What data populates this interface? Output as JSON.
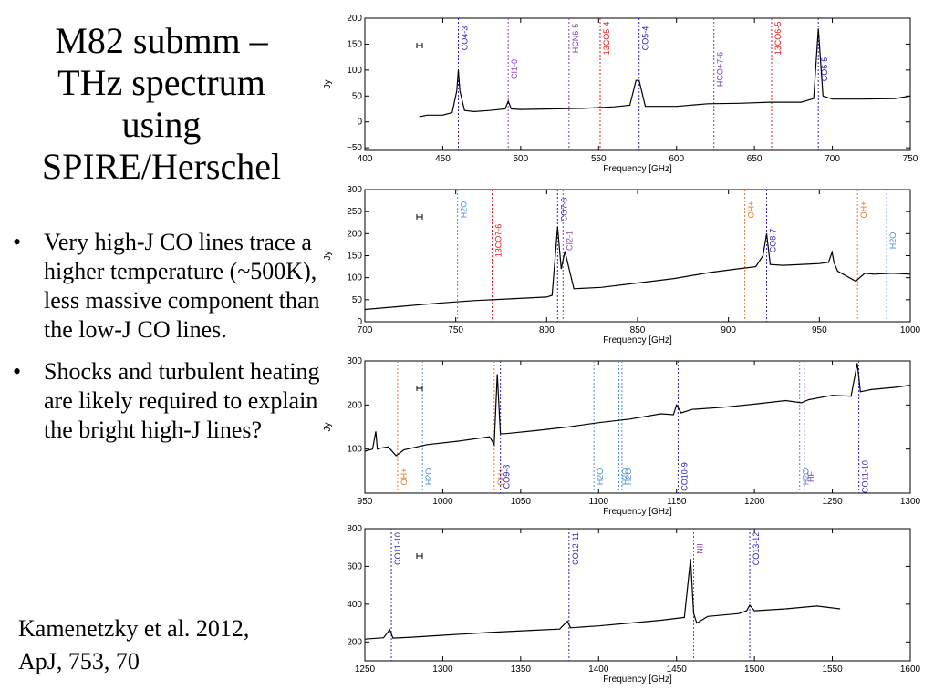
{
  "slide": {
    "title_lines": [
      "M82 submm –",
      "THz spectrum",
      "using",
      "SPIRE/Herschel"
    ],
    "bullets": [
      "Very high-J CO lines trace a higher temperature (~500K), less massive component than the low-J CO lines.",
      "Shocks and turbulent heating are likely required to explain the bright high-J lines?"
    ],
    "citation_lines": [
      "Kamenetzky et al. 2012,",
      "ApJ, 753, 70"
    ]
  },
  "colors": {
    "co": "#2a22b8",
    "ci": "#8b3fb8",
    "oh": "#e07a30",
    "h2o": "#4f8fd4",
    "hco": "#7a3fa8",
    "red": "#e01a1a",
    "hf": "#8b3fb8",
    "spectrum": "#000000"
  },
  "chart_data": [
    {
      "type": "line",
      "xlabel": "Frequency [GHz]",
      "ylabel": "Jy",
      "xlim": [
        400,
        750
      ],
      "ylim": [
        -55,
        200
      ],
      "xticks": [
        400,
        450,
        500,
        550,
        600,
        650,
        700,
        750
      ],
      "yticks": [
        -50,
        0,
        50,
        100,
        150,
        200
      ],
      "xtick_labels": [
        "400",
        "450",
        "500",
        "550",
        "600",
        "650",
        "700",
        "750"
      ],
      "ytick_labels": [
        "−50",
        "0",
        "50",
        "100",
        "150",
        "200"
      ],
      "series": [
        {
          "x": [
            435,
            440,
            450,
            456,
            459,
            460,
            461,
            464,
            470,
            480,
            490,
            492,
            494,
            500,
            520,
            540,
            560,
            570,
            574,
            576,
            580,
            600,
            620,
            640,
            660,
            680,
            688,
            691,
            694,
            700,
            720,
            740,
            750
          ],
          "y": [
            10,
            13,
            13,
            18,
            60,
            100,
            60,
            22,
            20,
            22,
            25,
            40,
            25,
            24,
            25,
            26,
            29,
            32,
            80,
            80,
            30,
            30,
            35,
            36,
            38,
            38,
            45,
            180,
            50,
            44,
            44,
            45,
            50
          ]
        }
      ],
      "lines": [
        {
          "x": 460,
          "label": "CO4-3",
          "color": "co",
          "pos": "top"
        },
        {
          "x": 492,
          "label": "CI1-0",
          "color": "ci",
          "pos": "mid"
        },
        {
          "x": 531,
          "label": "HCN6-5",
          "color": "hco",
          "pos": "top"
        },
        {
          "x": 551,
          "label": "13CO5-4",
          "color": "red",
          "pos": "top"
        },
        {
          "x": 576,
          "label": "CO5-4",
          "color": "co",
          "pos": "top"
        },
        {
          "x": 624,
          "label": "HCO+7-6",
          "color": "hco",
          "pos": "mid"
        },
        {
          "x": 661,
          "label": "13CO6-5",
          "color": "red",
          "pos": "top"
        },
        {
          "x": 691,
          "label": "CO6-5",
          "color": "co",
          "pos": "mid"
        }
      ]
    },
    {
      "type": "line",
      "xlabel": "Frequency [GHz]",
      "ylabel": "Jy",
      "xlim": [
        700,
        1000
      ],
      "ylim": [
        0,
        300
      ],
      "xticks": [
        700,
        750,
        800,
        850,
        900,
        950,
        1000
      ],
      "yticks": [
        0,
        50,
        100,
        150,
        200,
        250,
        300
      ],
      "xtick_labels": [
        "700",
        "750",
        "800",
        "850",
        "900",
        "950",
        "1000"
      ],
      "ytick_labels": [
        "0",
        "50",
        "100",
        "150",
        "200",
        "250",
        "300"
      ],
      "series": [
        {
          "x": [
            700,
            720,
            740,
            760,
            780,
            800,
            803,
            806,
            808,
            810,
            815,
            830,
            850,
            870,
            890,
            905,
            915,
            919,
            921,
            923,
            930,
            950,
            955,
            957,
            958,
            960,
            970,
            975,
            980,
            990,
            1000
          ],
          "y": [
            28,
            35,
            42,
            48,
            52,
            56,
            60,
            215,
            120,
            160,
            75,
            78,
            88,
            98,
            112,
            120,
            125,
            150,
            200,
            130,
            128,
            132,
            135,
            158,
            135,
            115,
            92,
            110,
            108,
            110,
            108
          ]
        }
      ],
      "lines": [
        {
          "x": 751,
          "label": "H2O",
          "color": "h2o",
          "pos": "top"
        },
        {
          "x": 770,
          "label": "13CO7-6",
          "color": "red",
          "pos": "mid"
        },
        {
          "x": 806,
          "label": "CO7-6",
          "color": "co",
          "pos": "top"
        },
        {
          "x": 809,
          "label": "CI2-1",
          "color": "ci",
          "pos": "mid"
        },
        {
          "x": 909,
          "label": "OH+",
          "color": "oh",
          "pos": "top"
        },
        {
          "x": 921,
          "label": "CO8-7",
          "color": "co",
          "pos": "mid"
        },
        {
          "x": 971,
          "label": "OH+",
          "color": "oh",
          "pos": "top"
        },
        {
          "x": 987,
          "label": "H2O",
          "color": "h2o",
          "pos": "mid"
        }
      ]
    },
    {
      "type": "line",
      "xlabel": "Frequency [GHz]",
      "ylabel": "Jy",
      "xlim": [
        950,
        1300
      ],
      "ylim": [
        0,
        300
      ],
      "xticks": [
        950,
        1000,
        1050,
        1100,
        1150,
        1200,
        1250,
        1300
      ],
      "yticks": [
        100,
        200,
        300
      ],
      "xtick_labels": [
        "950",
        "1000",
        "1050",
        "1100",
        "1150",
        "1200",
        "1250",
        "1300"
      ],
      "ytick_labels": [
        "100",
        "200",
        "300"
      ],
      "series": [
        {
          "x": [
            950,
            955,
            957,
            958,
            960,
            965,
            970,
            972,
            975,
            990,
            1010,
            1030,
            1033,
            1035,
            1037,
            1040,
            1060,
            1080,
            1100,
            1120,
            1140,
            1148,
            1150,
            1153,
            1160,
            1180,
            1200,
            1220,
            1230,
            1235,
            1250,
            1262,
            1266,
            1268,
            1275,
            1290,
            1300
          ],
          "y": [
            95,
            100,
            140,
            100,
            102,
            105,
            85,
            90,
            98,
            110,
            118,
            128,
            110,
            270,
            135,
            135,
            142,
            150,
            160,
            168,
            180,
            178,
            200,
            182,
            190,
            195,
            202,
            210,
            205,
            212,
            222,
            220,
            295,
            230,
            235,
            240,
            245
          ]
        }
      ],
      "lines": [
        {
          "x": 971,
          "label": "OH+",
          "color": "oh",
          "pos": "bottom"
        },
        {
          "x": 987,
          "label": "H2O",
          "color": "h2o",
          "pos": "bottom"
        },
        {
          "x": 1033,
          "label": "OH+",
          "color": "oh",
          "pos": "bottom"
        },
        {
          "x": 1037,
          "label": "CO9-8",
          "color": "co",
          "pos": "bottom"
        },
        {
          "x": 1097,
          "label": "H2O",
          "color": "h2o",
          "pos": "bottom"
        },
        {
          "x": 1113,
          "label": "H2O",
          "color": "h2o",
          "pos": "bottom"
        },
        {
          "x": 1115,
          "label": "H2O",
          "color": "h2o",
          "pos": "bottom"
        },
        {
          "x": 1151,
          "label": "CO10-9",
          "color": "co",
          "pos": "bottom"
        },
        {
          "x": 1229,
          "label": "H2O",
          "color": "h2o",
          "pos": "bottom"
        },
        {
          "x": 1232,
          "label": "HF",
          "color": "hf",
          "pos": "bottom"
        },
        {
          "x": 1267,
          "label": "CO11-10",
          "color": "co",
          "pos": "bottom"
        }
      ]
    },
    {
      "type": "line",
      "xlabel": "Frequency [GHz]",
      "ylabel": "",
      "xlim": [
        1250,
        1600
      ],
      "ylim": [
        100,
        800
      ],
      "xticks": [
        1250,
        1300,
        1350,
        1400,
        1450,
        1500,
        1550,
        1600
      ],
      "yticks": [
        200,
        400,
        600,
        800
      ],
      "xtick_labels": [
        "1250",
        "1300",
        "1350",
        "1400",
        "1450",
        "1500",
        "1550",
        "1600"
      ],
      "ytick_labels": [
        "200",
        "400",
        "600",
        "800"
      ],
      "series": [
        {
          "x": [
            1250,
            1262,
            1266,
            1268,
            1280,
            1300,
            1330,
            1360,
            1375,
            1380,
            1382,
            1400,
            1420,
            1440,
            1455,
            1459,
            1461,
            1463,
            1470,
            1490,
            1495,
            1497,
            1500,
            1520,
            1540,
            1555
          ],
          "y": [
            215,
            222,
            265,
            220,
            225,
            235,
            250,
            262,
            268,
            310,
            275,
            285,
            300,
            315,
            330,
            640,
            350,
            300,
            335,
            350,
            365,
            395,
            365,
            375,
            390,
            375
          ]
        }
      ],
      "lines": [
        {
          "x": 1267,
          "label": "CO11-10",
          "color": "co",
          "pos": "top"
        },
        {
          "x": 1381,
          "label": "CO12-11",
          "color": "co",
          "pos": "top"
        },
        {
          "x": 1461,
          "label": "NII",
          "color": "ci",
          "pos": "top"
        },
        {
          "x": 1497,
          "label": "CO13-12",
          "color": "co",
          "pos": "top"
        }
      ]
    }
  ]
}
